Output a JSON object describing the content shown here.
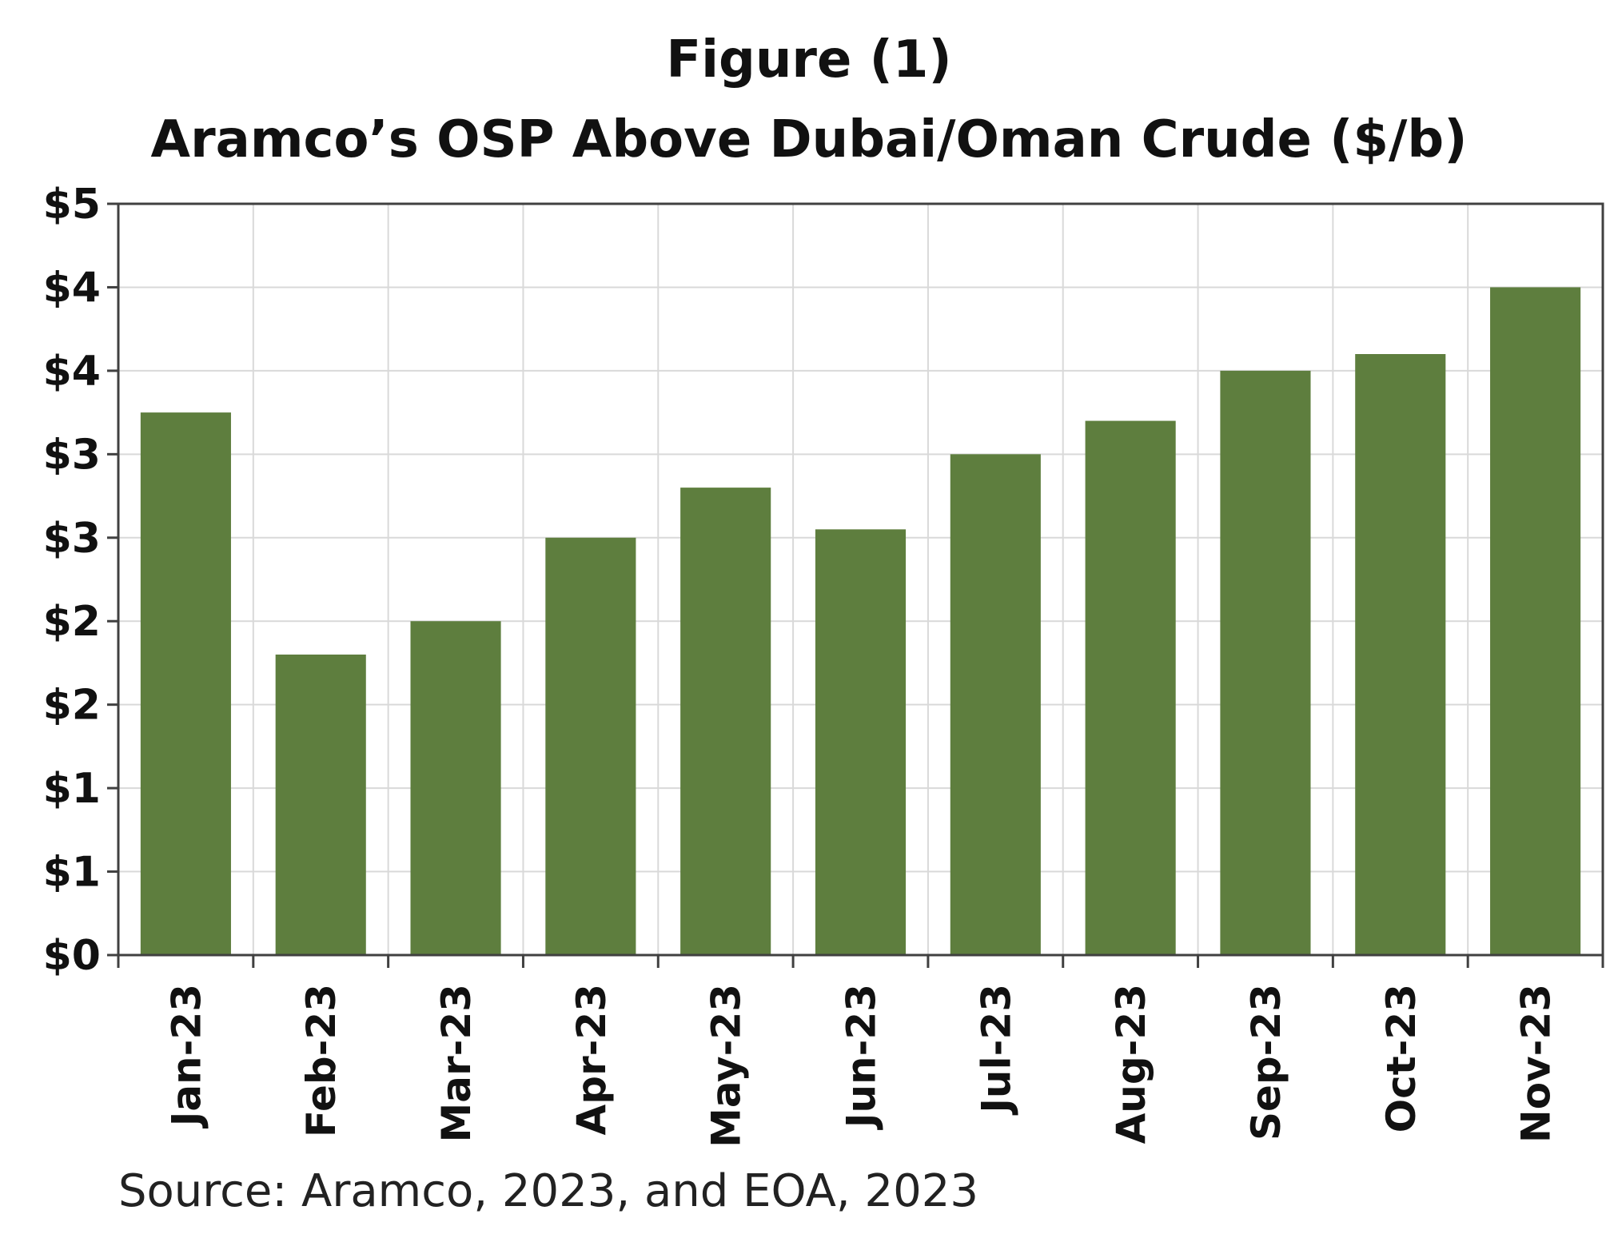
{
  "chart_data": {
    "type": "bar",
    "title": "Figure (1)",
    "subtitle": "Aramco’s OSP Above Dubai/Oman Crude ($/b)",
    "xlabel": "",
    "ylabel": "",
    "categories": [
      "Jan-23",
      "Feb-23",
      "Mar-23",
      "Apr-23",
      "May-23",
      "Jun-23",
      "Jul-23",
      "Aug-23",
      "Sep-23",
      "Oct-23",
      "Nov-23"
    ],
    "values": [
      3.25,
      1.8,
      2.0,
      2.5,
      2.8,
      2.55,
      3.0,
      3.2,
      3.5,
      3.6,
      4.0
    ],
    "ylim": [
      0,
      4.5
    ],
    "yticks": [
      0,
      0.5,
      1.0,
      1.5,
      2.0,
      2.5,
      3.0,
      3.5,
      4.0,
      4.5
    ],
    "ytick_labels": [
      "$0",
      "$1",
      "$1",
      "$2",
      "$2",
      "$3",
      "$3",
      "$4",
      "$4",
      "$5"
    ],
    "grid": true,
    "legend": "none",
    "bar_color": "#5e7e3e",
    "grid_color": "#d9d9d9",
    "axis_color": "#404040",
    "source": "Source: Aramco, 2023, and EOA, 2023"
  }
}
